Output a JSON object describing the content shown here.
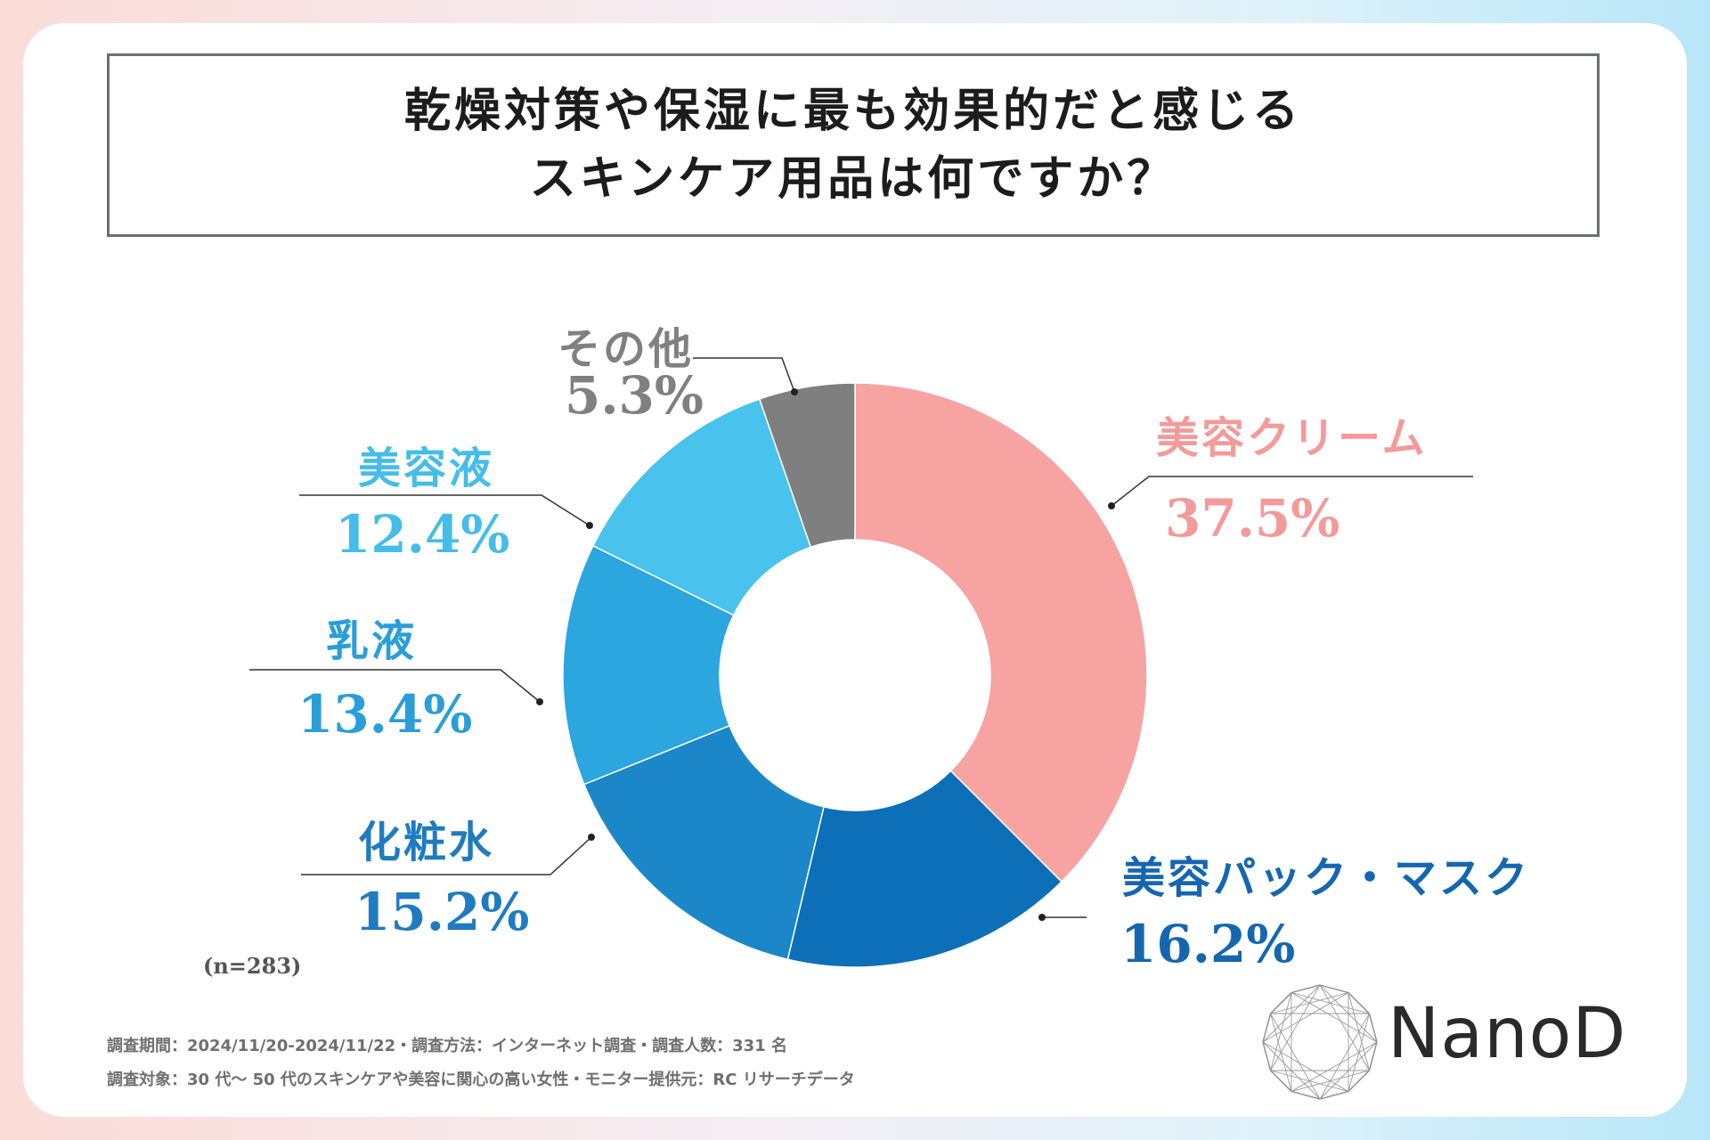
{
  "title_lines": [
    "乾燥対策や保湿に最も効果的だと感じる",
    "スキンケア用品は何ですか？"
  ],
  "chart_data": {
    "type": "pie",
    "donut": true,
    "title": "乾燥対策や保湿に最も効果的だと感じるスキンケア用品は何ですか？",
    "unit": "%",
    "slices": [
      {
        "label": "美容クリーム",
        "value": 37.5,
        "value_label": "37.5%",
        "color": "#f6a3a2"
      },
      {
        "label": "美容パック・マスク",
        "value": 16.2,
        "value_label": "16.2%",
        "color": "#0d6fb8"
      },
      {
        "label": "化粧水",
        "value": 15.2,
        "value_label": "15.2%",
        "color": "#1c87c8"
      },
      {
        "label": "乳液",
        "value": 13.4,
        "value_label": "13.4%",
        "color": "#2ba6df"
      },
      {
        "label": "美容液",
        "value": 12.4,
        "value_label": "12.4%",
        "color": "#49c2ee"
      },
      {
        "label": "その他",
        "value": 5.3,
        "value_label": "5.3%",
        "color": "#7f7f7f"
      }
    ],
    "sample_note": "(n=283)"
  },
  "footer": {
    "line1": "調査期間：2024/11/20-2024/11/22・調査方法：インターネット調査・調査人数：331 名",
    "line2": "調査対象：30 代〜 50 代のスキンケアや美容に関心の高い女性・モニター提供元：RC リサーチデータ"
  },
  "logo": {
    "text": "NanoD"
  }
}
